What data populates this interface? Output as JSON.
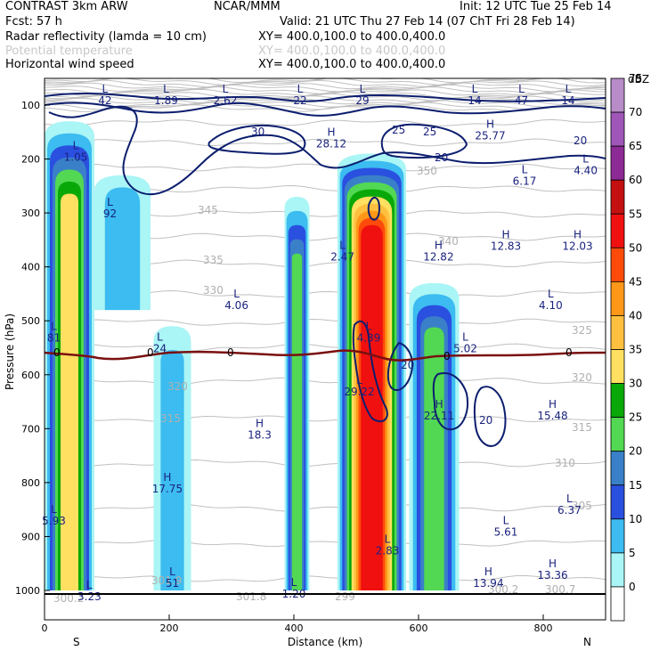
{
  "header": {
    "model": "CONTRAST   3km ARW",
    "center": "NCAR/MMM",
    "init": "Init: 12 UTC Tue 25 Feb 14",
    "fcst": "Fcst:    57 h",
    "valid": "Valid: 21 UTC Thu 27 Feb 14 (07 ChT Fri 28 Feb 14)",
    "fields": [
      {
        "name": "Radar reflectivity (lamda = 10 cm)",
        "xy": "XY= 400.0,100.0 to 400.0,400.0",
        "color": "#000000"
      },
      {
        "name": "Potential temperature",
        "xy": "XY= 400.0,100.0 to 400.0,400.0",
        "color": "#c8c8c8"
      },
      {
        "name": "Horizontal wind speed",
        "xy": "XY= 400.0,100.0 to 400.0,400.0",
        "color": "#000000"
      }
    ]
  },
  "chart_data": {
    "type": "heatmap",
    "xlabel": "Distance (km)",
    "ylabel": "Pressure (hPa)",
    "xlim": [
      0,
      900
    ],
    "ylim": [
      1000,
      70
    ],
    "x_ticks": [
      0,
      200,
      400,
      600,
      800
    ],
    "y_ticks": [
      100,
      200,
      300,
      400,
      500,
      600,
      700,
      800,
      900,
      1000
    ],
    "x_end_labels": {
      "left": "S",
      "right": "N"
    },
    "colorbar": {
      "unit": "dBZ",
      "levels": [
        0,
        5,
        10,
        15,
        20,
        25,
        30,
        35,
        40,
        45,
        50,
        55,
        60,
        65,
        70,
        75
      ],
      "colors": [
        "#ffffff",
        "#aaf5f5",
        "#3cbcf0",
        "#2a50e0",
        "#3a80c8",
        "#52d852",
        "#08a808",
        "#ffe060",
        "#ffc040",
        "#ff9818",
        "#ff4b0a",
        "#f01010",
        "#c41010",
        "#8e2a96",
        "#a056b8",
        "#b88cc8"
      ]
    },
    "reflectivity_cells": [
      {
        "x": [
          0,
          80
        ],
        "p": [
          130,
          1000
        ],
        "peak_dbz": 35
      },
      {
        "x": [
          80,
          170
        ],
        "p": [
          230,
          480
        ],
        "peak_dbz": 10
      },
      {
        "x": [
          175,
          235
        ],
        "p": [
          510,
          1000
        ],
        "peak_dbz": 10
      },
      {
        "x": [
          385,
          425
        ],
        "p": [
          270,
          1000
        ],
        "peak_dbz": 25
      },
      {
        "x": [
          470,
          580
        ],
        "p": [
          190,
          1000
        ],
        "peak_dbz": 55
      },
      {
        "x": [
          585,
          665
        ],
        "p": [
          430,
          1000
        ],
        "peak_dbz": 25
      }
    ],
    "wind_speed_labels": [
      "30",
      "25",
      "25",
      "20",
      "20",
      "20",
      "20"
    ],
    "theta_labels": [
      "350",
      "345",
      "340",
      "335",
      "330",
      "325",
      "320",
      "320",
      "315",
      "315",
      "310",
      "305",
      "300.2",
      "301.9",
      "301.8",
      "299",
      "300.2",
      "300.7"
    ],
    "freezing_level": {
      "value_label": "0",
      "pressure": 562
    },
    "extrema": [
      {
        "type": "L",
        "value": "42",
        "x": 97,
        "p": 80
      },
      {
        "type": "L",
        "value": "1.89",
        "x": 195,
        "p": 80
      },
      {
        "type": "L",
        "value": "2.62",
        "x": 290,
        "p": 80
      },
      {
        "type": "L",
        "value": "22",
        "x": 410,
        "p": 80
      },
      {
        "type": "L",
        "value": "29",
        "x": 510,
        "p": 80
      },
      {
        "type": "L",
        "value": "14",
        "x": 690,
        "p": 80
      },
      {
        "type": "L",
        "value": "47",
        "x": 765,
        "p": 80
      },
      {
        "type": "L",
        "value": "14",
        "x": 840,
        "p": 80
      },
      {
        "type": "H",
        "value": "28.12",
        "x": 460,
        "p": 160
      },
      {
        "type": "H",
        "value": "25.77",
        "x": 715,
        "p": 145
      },
      {
        "type": "L",
        "value": "1.05",
        "x": 50,
        "p": 185
      },
      {
        "type": "L",
        "value": "6.17",
        "x": 770,
        "p": 230
      },
      {
        "type": "L",
        "value": "4.40",
        "x": 868,
        "p": 210
      },
      {
        "type": "L",
        "value": "92",
        "x": 105,
        "p": 290
      },
      {
        "type": "L",
        "value": "2.47",
        "x": 478,
        "p": 370
      },
      {
        "type": "H",
        "value": "12.82",
        "x": 632,
        "p": 370
      },
      {
        "type": "H",
        "value": "12.83",
        "x": 740,
        "p": 350
      },
      {
        "type": "H",
        "value": "12.03",
        "x": 855,
        "p": 350
      },
      {
        "type": "L",
        "value": "4.06",
        "x": 308,
        "p": 460
      },
      {
        "type": "L",
        "value": "4.10",
        "x": 812,
        "p": 460
      },
      {
        "type": "L",
        "value": "81",
        "x": 15,
        "p": 520
      },
      {
        "type": "L",
        "value": "24",
        "x": 185,
        "p": 540
      },
      {
        "type": "L",
        "value": "4.39",
        "x": 520,
        "p": 520
      },
      {
        "type": "L",
        "value": "5.02",
        "x": 675,
        "p": 540
      },
      {
        "type": "L",
        "value": "29.22",
        "x": 505,
        "p": 620
      },
      {
        "type": "H",
        "value": "22.11",
        "x": 633,
        "p": 665
      },
      {
        "type": "H",
        "value": "15.48",
        "x": 815,
        "p": 665
      },
      {
        "type": "H",
        "value": "18.3",
        "x": 345,
        "p": 700
      },
      {
        "type": "H",
        "value": "17.75",
        "x": 197,
        "p": 800
      },
      {
        "type": "L",
        "value": "5.93",
        "x": 15,
        "p": 860
      },
      {
        "type": "L",
        "value": "6.37",
        "x": 842,
        "p": 840
      },
      {
        "type": "L",
        "value": "5.61",
        "x": 740,
        "p": 880
      },
      {
        "type": "L",
        "value": "2.83",
        "x": 550,
        "p": 915
      },
      {
        "type": "H",
        "value": "13.94",
        "x": 712,
        "p": 975
      },
      {
        "type": "H",
        "value": "13.36",
        "x": 815,
        "p": 960
      },
      {
        "type": "L",
        "value": "3.23",
        "x": 72,
        "p": 1000
      },
      {
        "type": "L",
        "value": "51",
        "x": 205,
        "p": 975
      },
      {
        "type": "L",
        "value": "1.20",
        "x": 400,
        "p": 995
      }
    ]
  }
}
